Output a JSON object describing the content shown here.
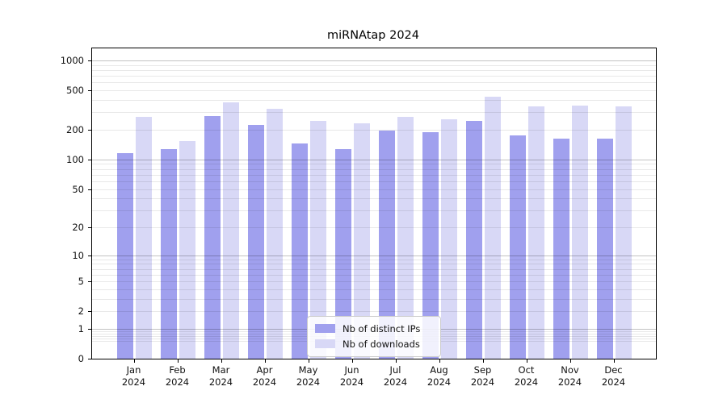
{
  "chart_data": {
    "type": "bar",
    "title": "miRNAtap 2024",
    "categories": [
      "Jan 2024",
      "Feb 2024",
      "Mar 2024",
      "Apr 2024",
      "May 2024",
      "Jun 2024",
      "Jul 2024",
      "Aug 2024",
      "Sep 2024",
      "Oct 2024",
      "Nov 2024",
      "Dec 2024"
    ],
    "x_tick_month": [
      "Jan",
      "Feb",
      "Mar",
      "Apr",
      "May",
      "Jun",
      "Jul",
      "Aug",
      "Sep",
      "Oct",
      "Nov",
      "Dec"
    ],
    "x_tick_year": "2024",
    "series": [
      {
        "name": "Nb of distinct IPs",
        "color": "#a0a0ee",
        "values": [
          115,
          128,
          275,
          222,
          145,
          128,
          198,
          190,
          246,
          175,
          162,
          162
        ]
      },
      {
        "name": "Nb of downloads",
        "color": "#d8d8f6",
        "values": [
          270,
          154,
          380,
          327,
          246,
          231,
          271,
          256,
          433,
          342,
          350,
          342
        ]
      }
    ],
    "yscale": "log1p",
    "ylim": [
      0,
      1320
    ],
    "y_tick_values": [
      1000,
      500,
      200,
      100,
      50,
      20,
      10,
      5,
      2,
      1,
      0
    ],
    "y_major_gridlines": [
      1,
      10,
      100,
      1000
    ],
    "y_minor_gridlines": [
      0.5,
      0.6,
      0.7,
      0.8,
      0.9,
      2,
      3,
      4,
      5,
      6,
      7,
      8,
      9,
      20,
      30,
      40,
      50,
      60,
      70,
      80,
      90,
      200,
      300,
      400,
      500,
      600,
      700,
      800,
      900
    ],
    "grid": "horizontal only",
    "legend_position": "inside lower center"
  }
}
